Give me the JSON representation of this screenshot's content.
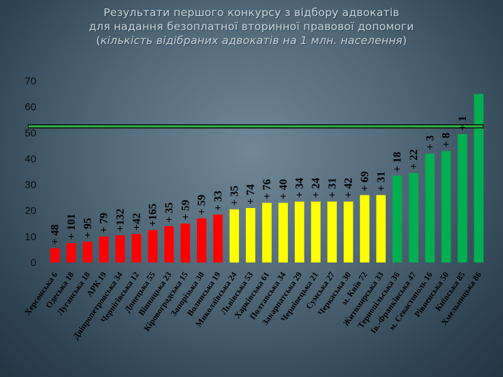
{
  "page": {
    "title_line1": "Результати першого конкурсу з відбору адвокатів",
    "title_line2": "для надання безоплатної вторинної правової допомоги",
    "title_open": "(",
    "title_italic": "кількість відібраних адвокатів на 1 млн. населення",
    "title_close": ")"
  },
  "chart_data": {
    "type": "bar",
    "title": "Результати першого конкурсу з відбору адвокатів для надання безоплатної вторинної правової допомоги (кількість відібраних адвокатів на 1 млн. населення)",
    "ylim": [
      0,
      70
    ],
    "yticks": [
      "0",
      "10",
      "20",
      "30",
      "40",
      "50",
      "60",
      "70"
    ],
    "grid": false,
    "legend": "none",
    "reference_line": {
      "value": 52.5,
      "color": "#2db84a"
    },
    "colors": {
      "red": "#ff0000",
      "yellow": "#ffff00",
      "green": "#00b050"
    },
    "categories": [
      "Херсонська 6",
      "Одеська 18",
      "Луганська 18",
      "АРК 19",
      "Дніпропетровська 34",
      "Чернігівська 12",
      "Донецька 55",
      "Вінницька 23",
      "Кіровоградська 15",
      "Запорізька 30",
      "Волинська 19",
      "Миколаївська 24",
      "Львівська 53",
      "Харківська 61",
      "Полтавська 34",
      "Закарпатська 29",
      "Чернівецька 21",
      "Сумська 27",
      "Черкаська 30",
      "м. Київ 72",
      "Житомирська 33",
      "Тернопільська 36",
      "Ів.-Франківська 47",
      "м. Севастополь 16",
      "Рівненська 50",
      "Київська 85",
      "Хмельницька 86"
    ],
    "values": [
      5.5,
      7.5,
      8,
      10,
      10.5,
      11,
      12.5,
      14,
      15,
      17,
      18.5,
      20.5,
      21,
      23,
      23,
      23.5,
      23.5,
      23.5,
      23.5,
      26,
      26,
      33.5,
      34.5,
      42,
      43,
      49.5,
      65
    ],
    "bar_colors": [
      "red",
      "red",
      "red",
      "red",
      "red",
      "red",
      "red",
      "red",
      "red",
      "red",
      "red",
      "yellow",
      "yellow",
      "yellow",
      "yellow",
      "yellow",
      "yellow",
      "yellow",
      "yellow",
      "yellow",
      "yellow",
      "green",
      "green",
      "green",
      "green",
      "green",
      "green"
    ],
    "annotations": [
      "+ 48",
      "+ 101",
      "+ 95",
      "+ 79",
      "+132",
      "+42",
      "+165",
      "+ 35",
      "+ 59",
      "+ 59",
      "+ 33",
      "+ 35",
      "+ 74",
      "+ 76",
      "+ 40",
      "+ 34",
      "+ 24",
      "+ 31",
      "+ 42",
      "+ 69",
      "+ 31",
      "+ 18",
      "+ 22",
      "+ 3",
      "+ 8",
      "+ 1",
      ""
    ]
  }
}
